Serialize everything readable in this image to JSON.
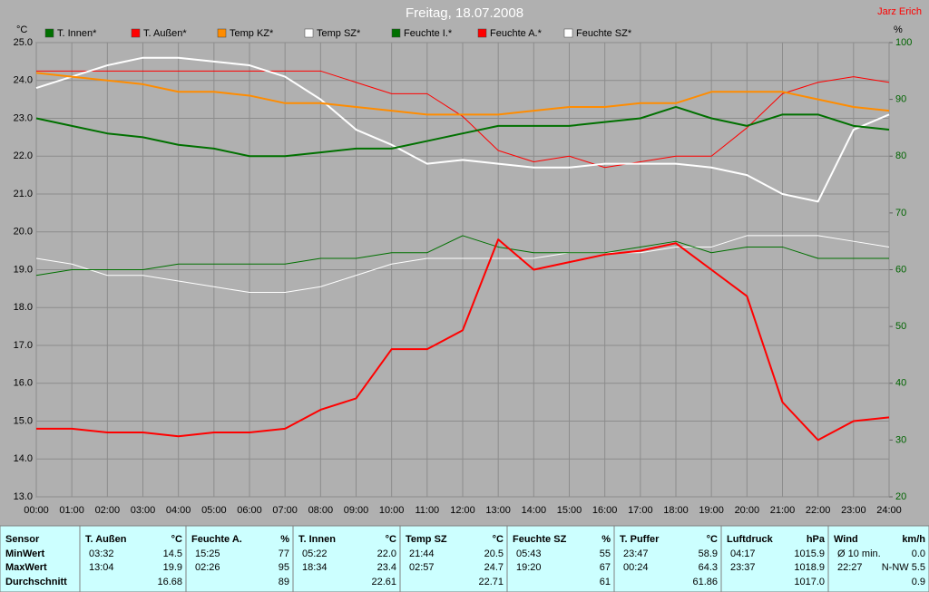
{
  "chart_data": {
    "type": "line",
    "title": "Freitag, 18.07.2008",
    "author": "Jarz Erich",
    "y_label": "°C",
    "y2_label": "%",
    "grid": true,
    "x": [
      0,
      1,
      2,
      3,
      4,
      5,
      6,
      7,
      8,
      9,
      10,
      11,
      12,
      13,
      14,
      15,
      16,
      17,
      18,
      19,
      20,
      21,
      22,
      23,
      24
    ],
    "xlim": [
      0,
      24
    ],
    "xticks": [
      {
        "value": 0,
        "label": "00:00"
      },
      {
        "value": 1,
        "label": "01:00"
      },
      {
        "value": 2,
        "label": "02:00"
      },
      {
        "value": 3,
        "label": "03:00"
      },
      {
        "value": 4,
        "label": "04:00"
      },
      {
        "value": 5,
        "label": "05:00"
      },
      {
        "value": 6,
        "label": "06:00"
      },
      {
        "value": 7,
        "label": "07:00"
      },
      {
        "value": 8,
        "label": "08:00"
      },
      {
        "value": 9,
        "label": "09:00"
      },
      {
        "value": 10,
        "label": "10:00"
      },
      {
        "value": 11,
        "label": "11:00"
      },
      {
        "value": 12,
        "label": "12:00"
      },
      {
        "value": 13,
        "label": "13:00"
      },
      {
        "value": 14,
        "label": "14:00"
      },
      {
        "value": 15,
        "label": "15:00"
      },
      {
        "value": 16,
        "label": "16:00"
      },
      {
        "value": 17,
        "label": "17:00"
      },
      {
        "value": 18,
        "label": "18:00"
      },
      {
        "value": 19,
        "label": "19:00"
      },
      {
        "value": 20,
        "label": "20:00"
      },
      {
        "value": 21,
        "label": "21:00"
      },
      {
        "value": 22,
        "label": "22:00"
      },
      {
        "value": 23,
        "label": "23:00"
      },
      {
        "value": 24,
        "label": "24:00"
      }
    ],
    "ylim": [
      13,
      25
    ],
    "yticks": [
      {
        "value": 13,
        "label": "13.0"
      },
      {
        "value": 14,
        "label": "14.0"
      },
      {
        "value": 15,
        "label": "15.0"
      },
      {
        "value": 16,
        "label": "16.0"
      },
      {
        "value": 17,
        "label": "17.0"
      },
      {
        "value": 18,
        "label": "18.0"
      },
      {
        "value": 19,
        "label": "19.0"
      },
      {
        "value": 20,
        "label": "20.0"
      },
      {
        "value": 21,
        "label": "21.0"
      },
      {
        "value": 22,
        "label": "22.0"
      },
      {
        "value": 23,
        "label": "23.0"
      },
      {
        "value": 24,
        "label": "24.0"
      },
      {
        "value": 25,
        "label": "25.0"
      }
    ],
    "y2lim": [
      20,
      100
    ],
    "y2ticks": [
      20,
      30,
      40,
      50,
      60,
      70,
      80,
      90,
      100
    ],
    "y2_color": "#006400",
    "series": [
      {
        "name": "T. Innen*",
        "color": "#007000",
        "line_width": 2,
        "values": [
          23.0,
          22.8,
          22.6,
          22.5,
          22.3,
          22.2,
          22.0,
          22.0,
          22.1,
          22.2,
          22.2,
          22.4,
          22.6,
          22.8,
          22.8,
          22.8,
          22.9,
          23.0,
          23.3,
          23.0,
          22.8,
          23.1,
          23.1,
          22.8,
          22.7
        ]
      },
      {
        "name": "T. Außen*",
        "color": "#ff0000",
        "line_width": 2,
        "values": [
          14.8,
          14.8,
          14.7,
          14.7,
          14.6,
          14.7,
          14.7,
          14.8,
          15.3,
          15.6,
          16.9,
          16.9,
          17.4,
          19.8,
          19.0,
          19.2,
          19.4,
          19.5,
          19.7,
          19.0,
          18.3,
          15.5,
          14.5,
          15.0,
          15.1
        ]
      },
      {
        "name": "Temp KZ*",
        "color": "#ff8c00",
        "line_width": 2,
        "values": [
          24.2,
          24.1,
          24.0,
          23.9,
          23.7,
          23.7,
          23.6,
          23.4,
          23.4,
          23.3,
          23.2,
          23.1,
          23.1,
          23.1,
          23.2,
          23.3,
          23.3,
          23.4,
          23.4,
          23.7,
          23.7,
          23.7,
          23.5,
          23.3,
          23.2
        ]
      },
      {
        "name": "Temp SZ*",
        "color": "#ffffff",
        "line_width": 2,
        "values": [
          23.8,
          24.1,
          24.4,
          24.6,
          24.6,
          24.5,
          24.4,
          24.1,
          23.5,
          22.7,
          22.3,
          21.8,
          21.9,
          21.8,
          21.7,
          21.7,
          21.8,
          21.8,
          21.8,
          21.7,
          21.5,
          21.0,
          20.8,
          22.7,
          23.1
        ]
      },
      {
        "name": "Feuchte I.*",
        "color": "#007000",
        "line_width": 1,
        "axis": "y2",
        "values": [
          59,
          60,
          60,
          60,
          61,
          61,
          61,
          61,
          62,
          62,
          63,
          63,
          66,
          64,
          63,
          63,
          63,
          64,
          65,
          63,
          64,
          64,
          62,
          62,
          62
        ]
      },
      {
        "name": "Feuchte A.*",
        "color": "#ff0000",
        "line_width": 1,
        "axis": "y2",
        "values": [
          95,
          95,
          95,
          95,
          95,
          95,
          95,
          95,
          95,
          93,
          91,
          91,
          87,
          81,
          79,
          80,
          78,
          79,
          80,
          80,
          85,
          91,
          93,
          94,
          93
        ]
      },
      {
        "name": "Feuchte SZ*",
        "color": "#ffffff",
        "line_width": 1,
        "axis": "y2",
        "values": [
          62,
          61,
          59,
          59,
          58,
          57,
          56,
          56,
          57,
          59,
          61,
          62,
          62,
          62,
          62,
          63,
          63,
          63,
          64,
          64,
          66,
          66,
          66,
          65,
          64
        ]
      }
    ]
  },
  "table": {
    "row_labels": [
      "Sensor",
      "MinWert",
      "MaxWert",
      "Durchschnitt"
    ],
    "sensors": [
      {
        "name": "T. Außen",
        "unit": "°C",
        "min_time": "03:32",
        "min_value": "14.5",
        "max_time": "13:04",
        "max_value": "19.9",
        "avg": "16.68"
      },
      {
        "name": "Feuchte A.",
        "unit": "%",
        "min_time": "15:25",
        "min_value": "77",
        "max_time": "02:26",
        "max_value": "95",
        "avg": "89"
      },
      {
        "name": "T. Innen",
        "unit": "°C",
        "min_time": "05:22",
        "min_value": "22.0",
        "max_time": "18:34",
        "max_value": "23.4",
        "avg": "22.61"
      },
      {
        "name": "Temp SZ",
        "unit": "°C",
        "min_time": "21:44",
        "min_value": "20.5",
        "max_time": "02:57",
        "max_value": "24.7",
        "avg": "22.71"
      },
      {
        "name": "Feuchte SZ",
        "unit": "%",
        "min_time": "05:43",
        "min_value": "55",
        "max_time": "19:20",
        "max_value": "67",
        "avg": "61"
      },
      {
        "name": "T. Puffer",
        "unit": "°C",
        "min_time": "23:47",
        "min_value": "58.9",
        "max_time": "00:24",
        "max_value": "64.3",
        "avg": "61.86"
      },
      {
        "name": "Luftdruck",
        "unit": "hPa",
        "min_time": "04:17",
        "min_value": "1015.9",
        "max_time": "23:37",
        "max_value": "1018.9",
        "avg": "1017.0"
      },
      {
        "name": "Wind",
        "unit": "km/h",
        "min_time": "Ø 10 min.",
        "min_value": "0.0",
        "max_time": "22:27",
        "max_value": "N-NW 5.5",
        "avg": "0.9"
      }
    ]
  }
}
